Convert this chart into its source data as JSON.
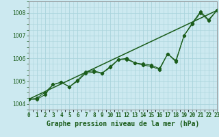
{
  "title": "Graphe pression niveau de la mer (hPa)",
  "x_labels": [
    "0",
    "1",
    "2",
    "3",
    "4",
    "5",
    "6",
    "7",
    "8",
    "9",
    "10",
    "11",
    "12",
    "13",
    "14",
    "15",
    "16",
    "17",
    "18",
    "19",
    "20",
    "21",
    "22",
    "23"
  ],
  "ylim": [
    1003.75,
    1008.5
  ],
  "xlim": [
    0,
    23
  ],
  "yticks": [
    1004,
    1005,
    1006,
    1007,
    1008
  ],
  "background_color": "#cce9f0",
  "grid_color": "#aad4dc",
  "line_color": "#1a5c1a",
  "line1": [
    1004.2,
    1004.2,
    1004.4,
    1004.85,
    1004.95,
    1004.75,
    1005.05,
    1005.4,
    1005.45,
    1005.35,
    1005.65,
    1005.95,
    1006.0,
    1005.8,
    1005.75,
    1005.7,
    1005.55,
    1006.2,
    1005.9,
    1007.0,
    1007.55,
    1008.05,
    1007.7,
    1008.1
  ],
  "line2": [
    1004.2,
    1004.25,
    1004.5,
    1004.85,
    1004.95,
    1004.75,
    1005.0,
    1005.35,
    1005.4,
    1005.35,
    1005.6,
    1005.95,
    1005.95,
    1005.8,
    1005.7,
    1005.65,
    1005.5,
    1006.2,
    1005.85,
    1007.0,
    1007.5,
    1008.0,
    1007.65,
    1008.1
  ],
  "line3_x": [
    0,
    23
  ],
  "line3_y": [
    1004.2,
    1008.1
  ],
  "tick_fontsize": 5.5,
  "xlabel_fontsize": 7.0
}
